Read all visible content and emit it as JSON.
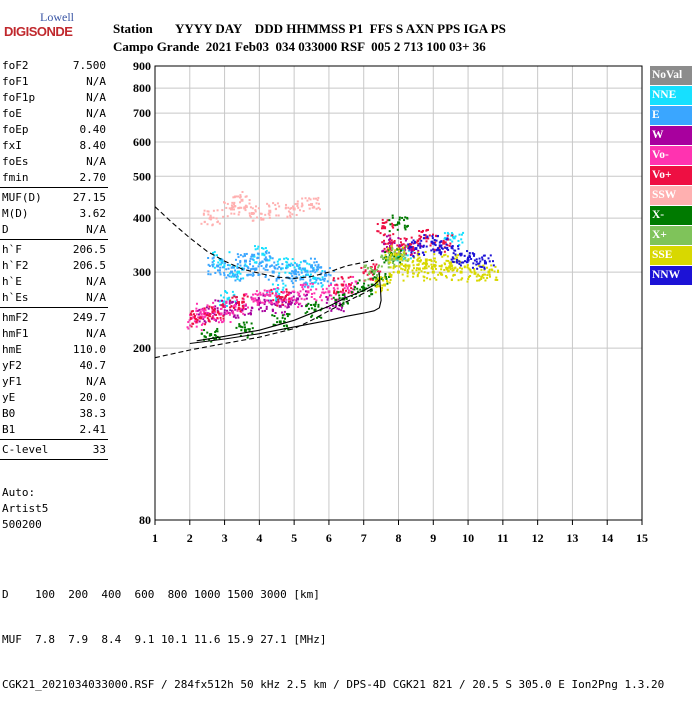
{
  "logo": {
    "brand": "Lowell",
    "product": "DIGISONDE"
  },
  "header": {
    "row1": "Station       YYYY DAY    DDD HHMMSS P1  FFS S AXN PPS IGA PS",
    "row2": "Campo Grande  2021 Feb03  034 033000 RSF  005 2 713 100 03+ 36"
  },
  "params": [
    {
      "k": "foF2",
      "v": "7.500"
    },
    {
      "k": "foF1",
      "v": "N/A"
    },
    {
      "k": "foF1p",
      "v": "N/A"
    },
    {
      "k": "foE",
      "v": "N/A"
    },
    {
      "k": "foEp",
      "v": "0.40"
    },
    {
      "k": "fxI",
      "v": "8.40"
    },
    {
      "k": "foEs",
      "v": "N/A"
    },
    {
      "k": "fmin",
      "v": "2.70"
    },
    {
      "k": "MUF(D)",
      "v": "27.15"
    },
    {
      "k": "M(D)",
      "v": "3.62"
    },
    {
      "k": "D",
      "v": "N/A"
    },
    {
      "k": "h`F",
      "v": "206.5"
    },
    {
      "k": "h`F2",
      "v": "206.5"
    },
    {
      "k": "h`E",
      "v": "N/A"
    },
    {
      "k": "h`Es",
      "v": "N/A"
    },
    {
      "k": "hmF2",
      "v": "249.7"
    },
    {
      "k": "hmF1",
      "v": "N/A"
    },
    {
      "k": "hmE",
      "v": "110.0"
    },
    {
      "k": "yF2",
      "v": "40.7"
    },
    {
      "k": "yF1",
      "v": "N/A"
    },
    {
      "k": "yE",
      "v": "20.0"
    },
    {
      "k": "B0",
      "v": "38.3"
    },
    {
      "k": "B1",
      "v": "2.41"
    },
    {
      "k": "C-level",
      "v": "33"
    }
  ],
  "auto": {
    "line1": "Auto:",
    "line2": "Artist5",
    "line3": "500200"
  },
  "legend": [
    {
      "label": "NoVal",
      "color": "#8c8c8c"
    },
    {
      "label": "NNE",
      "color": "#16e0ff"
    },
    {
      "label": "E",
      "color": "#3aa6ff"
    },
    {
      "label": "W",
      "color": "#a8009e"
    },
    {
      "label": "Vo-",
      "color": "#ff33b0"
    },
    {
      "label": "Vo+",
      "color": "#ee0f42"
    },
    {
      "label": "SSW",
      "color": "#ffb0b0"
    },
    {
      "label": "X-",
      "color": "#007a00"
    },
    {
      "label": "X+",
      "color": "#7fc35a"
    },
    {
      "label": "SSE",
      "color": "#d8d800"
    },
    {
      "label": "NNW",
      "color": "#1c12d6"
    }
  ],
  "footer": {
    "line1": "D    100  200  400  600  800 1000 1500 3000 [km]",
    "line2": "MUF  7.8  7.9  8.4  9.1 10.1 11.6 15.9 27.1 [MHz]",
    "line3": "CGK21_2021034033000.RSF / 284fx512h 50 kHz 2.5 km / DPS-4D CGK21 821 / 20.5 S 305.0 E Ion2Png 1.3.20"
  },
  "chart_data": {
    "type": "scatter",
    "xlim": [
      1,
      15
    ],
    "ylim": [
      80,
      900
    ],
    "xticks": [
      1,
      2,
      3,
      4,
      5,
      6,
      7,
      8,
      9,
      10,
      11,
      12,
      13,
      14,
      15
    ],
    "yticks": [
      80,
      200,
      300,
      400,
      500,
      600,
      700,
      800,
      900
    ],
    "x_scale": "linear",
    "y_scale": "log",
    "grid": true,
    "legend_placement": "right",
    "series": [
      {
        "name": "NoVal",
        "color": "#8c8c8c",
        "points": []
      },
      {
        "name": "NNE",
        "color": "#16e0ff",
        "points": [
          [
            2.9,
            320
          ],
          [
            3.4,
            300
          ],
          [
            4.1,
            330
          ],
          [
            4.8,
            310
          ],
          [
            5.3,
            305
          ],
          [
            5.6,
            290
          ],
          [
            3.1,
            260
          ],
          [
            4.5,
            270
          ],
          [
            8.2,
            330
          ],
          [
            9.6,
            360
          ]
        ]
      },
      {
        "name": "E",
        "color": "#3aa6ff",
        "points": [
          [
            2.8,
            310
          ],
          [
            3.2,
            300
          ],
          [
            3.9,
            305
          ],
          [
            4.4,
            300
          ],
          [
            5.0,
            300
          ],
          [
            5.5,
            310
          ],
          [
            5.9,
            295
          ],
          [
            4.2,
            320
          ],
          [
            3.6,
            318
          ],
          [
            5.2,
            290
          ]
        ]
      },
      {
        "name": "W",
        "color": "#a8009e",
        "points": [
          [
            2.5,
            240
          ],
          [
            3.0,
            250
          ],
          [
            3.5,
            245
          ],
          [
            4.0,
            255
          ],
          [
            4.6,
            250
          ],
          [
            5.1,
            260
          ],
          [
            6.2,
            255
          ],
          [
            7.8,
            350
          ],
          [
            8.4,
            340
          ]
        ]
      },
      {
        "name": "Vo-",
        "color": "#ff33b0",
        "points": [
          [
            2.4,
            245
          ],
          [
            2.9,
            240
          ],
          [
            3.3,
            250
          ],
          [
            3.8,
            260
          ],
          [
            4.3,
            265
          ],
          [
            4.9,
            260
          ],
          [
            5.4,
            270
          ],
          [
            6.0,
            270
          ],
          [
            6.6,
            280
          ],
          [
            2.2,
            230
          ]
        ]
      },
      {
        "name": "Vo+",
        "color": "#ee0f42",
        "points": [
          [
            2.3,
            235
          ],
          [
            2.7,
            245
          ],
          [
            3.4,
            255
          ],
          [
            4.6,
            262
          ],
          [
            6.4,
            280
          ],
          [
            7.2,
            300
          ],
          [
            7.8,
            340
          ],
          [
            8.3,
            345
          ],
          [
            8.8,
            360
          ],
          [
            9.3,
            350
          ],
          [
            7.6,
            380
          ]
        ]
      },
      {
        "name": "SSW",
        "color": "#ffb0b0",
        "points": [
          [
            2.6,
            400
          ],
          [
            3.2,
            420
          ],
          [
            3.8,
            410
          ],
          [
            4.3,
            415
          ],
          [
            5.0,
            420
          ],
          [
            5.5,
            430
          ],
          [
            3.5,
            440
          ]
        ]
      },
      {
        "name": "X-",
        "color": "#007a00",
        "points": [
          [
            2.6,
            215
          ],
          [
            3.6,
            220
          ],
          [
            4.6,
            230
          ],
          [
            5.6,
            245
          ],
          [
            6.4,
            260
          ],
          [
            7.0,
            275
          ],
          [
            7.5,
            290
          ],
          [
            7.8,
            330
          ],
          [
            8.0,
            390
          ]
        ]
      },
      {
        "name": "X+",
        "color": "#7fc35a",
        "points": [
          [
            7.3,
            300
          ],
          [
            7.7,
            320
          ],
          [
            8.0,
            330
          ]
        ]
      },
      {
        "name": "SSE",
        "color": "#d8d800",
        "points": [
          [
            7.6,
            280
          ],
          [
            8.0,
            300
          ],
          [
            8.3,
            310
          ],
          [
            8.6,
            305
          ],
          [
            9.0,
            300
          ],
          [
            9.4,
            305
          ],
          [
            9.8,
            300
          ],
          [
            10.2,
            298
          ],
          [
            10.6,
            300
          ],
          [
            8.8,
            320
          ],
          [
            9.5,
            315
          ],
          [
            7.9,
            330
          ]
        ]
      },
      {
        "name": "NNW",
        "color": "#1c12d6",
        "points": [
          [
            8.5,
            340
          ],
          [
            9.2,
            345
          ],
          [
            9.8,
            330
          ],
          [
            10.5,
            315
          ],
          [
            10.0,
            320
          ],
          [
            9.0,
            350
          ]
        ]
      }
    ],
    "curves": [
      {
        "style": "dashed",
        "points": [
          [
            1.0,
            425
          ],
          [
            1.5,
            390
          ],
          [
            2.0,
            360
          ],
          [
            2.5,
            335
          ],
          [
            3.0,
            318
          ],
          [
            3.5,
            305
          ],
          [
            4.0,
            298
          ],
          [
            4.5,
            292
          ],
          [
            5.0,
            290
          ],
          [
            5.5,
            293
          ],
          [
            6.0,
            300
          ],
          [
            6.5,
            310
          ],
          [
            7.0,
            316
          ],
          [
            7.3,
            320
          ]
        ]
      },
      {
        "style": "dashed",
        "points": [
          [
            1.0,
            190
          ],
          [
            2.0,
            198
          ],
          [
            3.0,
            205
          ],
          [
            4.0,
            212
          ],
          [
            5.0,
            222
          ],
          [
            5.5,
            232
          ],
          [
            6.0,
            244
          ],
          [
            6.5,
            256
          ],
          [
            7.0,
            268
          ],
          [
            7.3,
            276
          ]
        ]
      },
      {
        "style": "solid",
        "points": [
          [
            2.0,
            205
          ],
          [
            3.0,
            210
          ],
          [
            4.0,
            216
          ],
          [
            5.0,
            224
          ],
          [
            6.0,
            232
          ],
          [
            6.5,
            237
          ],
          [
            7.0,
            241
          ],
          [
            7.3,
            244
          ],
          [
            7.45,
            248
          ],
          [
            7.5,
            258
          ],
          [
            7.48,
            276
          ],
          [
            7.44,
            300
          ]
        ]
      },
      {
        "style": "solid",
        "points": [
          [
            2.2,
            208
          ],
          [
            3.0,
            213
          ],
          [
            4.0,
            220
          ],
          [
            5.0,
            232
          ],
          [
            6.0,
            250
          ],
          [
            6.5,
            262
          ],
          [
            7.0,
            272
          ],
          [
            7.3,
            280
          ],
          [
            7.45,
            288
          ]
        ]
      }
    ]
  }
}
